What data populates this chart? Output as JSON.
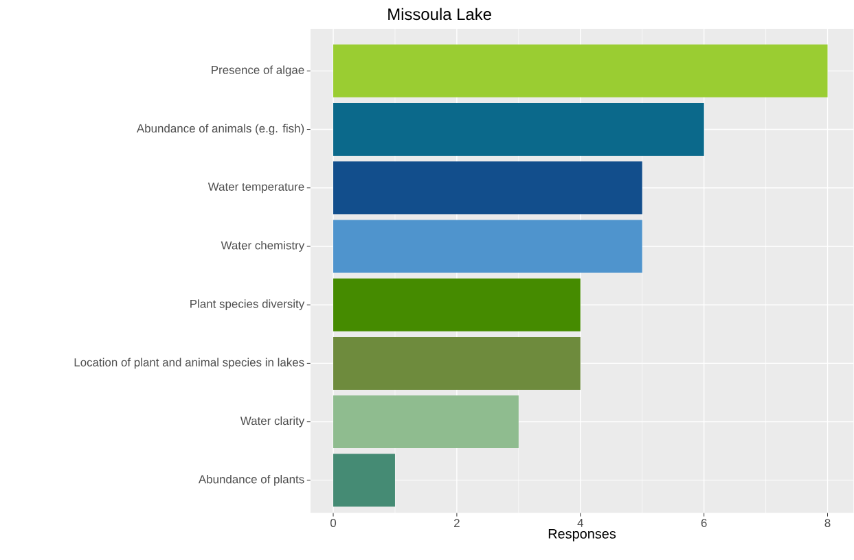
{
  "chart_data": {
    "type": "bar",
    "orientation": "horizontal",
    "title": "Missoula Lake",
    "xlabel": "Responses",
    "categories": [
      "Presence of algae",
      "Abundance of animals (e.g. fish)",
      "Water temperature",
      "Water chemistry",
      "Plant species diversity",
      "Location of plant and animal species in lakes",
      "Water clarity",
      "Abundance of plants"
    ],
    "values": [
      8,
      6,
      5,
      5,
      4,
      4,
      3,
      1
    ],
    "colors": [
      "#9acd32",
      "#0b698b",
      "#124e8c",
      "#4f94cd",
      "#458b00",
      "#6e8b3d",
      "#8fbc8f",
      "#458b74"
    ],
    "xlim": [
      -0.37,
      8.42
    ],
    "xticks": [
      0,
      2,
      4,
      6,
      8
    ],
    "grid": true
  }
}
